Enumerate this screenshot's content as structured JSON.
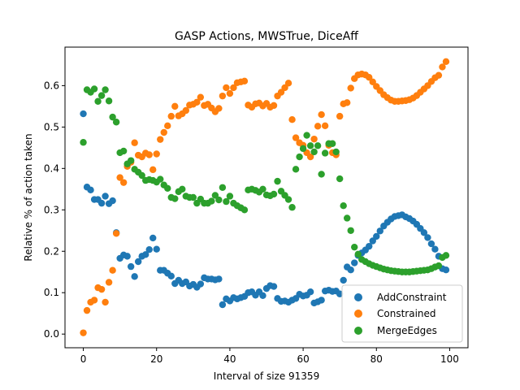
{
  "chart_data": {
    "type": "scatter",
    "title": "GASP Actions, MWSTrue, DiceAff",
    "xlabel": "Interval of size 91359",
    "ylabel": "Relative % of action taken",
    "xlim": [
      -5.0,
      105.0
    ],
    "ylim": [
      -0.033,
      0.693
    ],
    "xticks": [
      0,
      20,
      40,
      60,
      80,
      100
    ],
    "yticks": [
      0.0,
      0.1,
      0.2,
      0.3,
      0.4,
      0.5,
      0.6
    ],
    "xtick_labels": [
      "0",
      "20",
      "40",
      "60",
      "80",
      "100"
    ],
    "ytick_labels": [
      "0.0",
      "0.1",
      "0.2",
      "0.3",
      "0.4",
      "0.5",
      "0.6"
    ],
    "grid": false,
    "legend_position": "lower-right",
    "series": [
      {
        "name": "AddConstraint",
        "color": "#1f77b4",
        "x": [
          0,
          1,
          2,
          3,
          4,
          5,
          6,
          7,
          8,
          9,
          10,
          11,
          12,
          13,
          14,
          15,
          16,
          17,
          18,
          19,
          20,
          21,
          22,
          23,
          24,
          25,
          26,
          27,
          28,
          29,
          30,
          31,
          32,
          33,
          34,
          35,
          36,
          37,
          38,
          39,
          40,
          41,
          42,
          43,
          44,
          45,
          46,
          47,
          48,
          49,
          50,
          51,
          52,
          53,
          54,
          55,
          56,
          57,
          58,
          59,
          60,
          61,
          62,
          63,
          64,
          65,
          66,
          67,
          68,
          69,
          70,
          71,
          72,
          73,
          74,
          75,
          76,
          77,
          78,
          79,
          80,
          81,
          82,
          83,
          84,
          85,
          86,
          87,
          88,
          89,
          90,
          91,
          92,
          93,
          94,
          95,
          96,
          97,
          98,
          99
        ],
        "y": [
          0.532,
          0.355,
          0.348,
          0.325,
          0.325,
          0.316,
          0.333,
          0.315,
          0.322,
          0.245,
          0.183,
          0.191,
          0.188,
          0.163,
          0.139,
          0.175,
          0.188,
          0.192,
          0.204,
          0.232,
          0.205,
          0.154,
          0.154,
          0.147,
          0.14,
          0.122,
          0.13,
          0.122,
          0.126,
          0.116,
          0.12,
          0.113,
          0.121,
          0.136,
          0.133,
          0.133,
          0.131,
          0.133,
          0.071,
          0.085,
          0.08,
          0.088,
          0.085,
          0.088,
          0.091,
          0.1,
          0.102,
          0.094,
          0.102,
          0.093,
          0.11,
          0.117,
          0.115,
          0.086,
          0.079,
          0.08,
          0.077,
          0.082,
          0.086,
          0.096,
          0.092,
          0.094,
          0.102,
          0.075,
          0.078,
          0.082,
          0.104,
          0.106,
          0.103,
          0.104,
          0.097,
          0.13,
          0.162,
          0.155,
          0.172,
          0.19,
          0.196,
          0.203,
          0.212,
          0.225,
          0.236,
          0.249,
          0.261,
          0.27,
          0.278,
          0.284,
          0.286,
          0.288,
          0.283,
          0.279,
          0.273,
          0.265,
          0.255,
          0.245,
          0.233,
          0.218,
          0.205,
          0.188,
          0.158,
          0.155
        ]
      },
      {
        "name": "Constrained",
        "color": "#ff7f0e",
        "x": [
          0,
          1,
          2,
          3,
          4,
          5,
          6,
          7,
          8,
          9,
          10,
          11,
          12,
          13,
          14,
          15,
          16,
          17,
          18,
          19,
          20,
          21,
          22,
          23,
          24,
          25,
          26,
          27,
          28,
          29,
          30,
          31,
          32,
          33,
          34,
          35,
          36,
          37,
          38,
          39,
          40,
          41,
          42,
          43,
          44,
          45,
          46,
          47,
          48,
          49,
          50,
          51,
          52,
          53,
          54,
          55,
          56,
          57,
          58,
          59,
          60,
          61,
          62,
          63,
          64,
          65,
          66,
          67,
          68,
          69,
          70,
          71,
          72,
          73,
          74,
          75,
          76,
          77,
          78,
          79,
          80,
          81,
          82,
          83,
          84,
          85,
          86,
          87,
          88,
          89,
          90,
          91,
          92,
          93,
          94,
          95,
          96,
          97,
          98,
          99
        ],
        "y": [
          0.003,
          0.057,
          0.077,
          0.082,
          0.112,
          0.108,
          0.077,
          0.125,
          0.154,
          0.243,
          0.378,
          0.366,
          0.405,
          0.415,
          0.462,
          0.432,
          0.428,
          0.437,
          0.433,
          0.397,
          0.435,
          0.47,
          0.487,
          0.503,
          0.526,
          0.55,
          0.527,
          0.532,
          0.54,
          0.553,
          0.555,
          0.56,
          0.572,
          0.552,
          0.555,
          0.546,
          0.537,
          0.545,
          0.575,
          0.595,
          0.581,
          0.595,
          0.607,
          0.609,
          0.611,
          0.553,
          0.548,
          0.556,
          0.558,
          0.551,
          0.557,
          0.548,
          0.552,
          0.575,
          0.584,
          0.595,
          0.606,
          0.518,
          0.474,
          0.462,
          0.456,
          0.438,
          0.428,
          0.471,
          0.502,
          0.53,
          0.503,
          0.456,
          0.438,
          0.433,
          0.526,
          0.556,
          0.559,
          0.594,
          0.617,
          0.626,
          0.628,
          0.626,
          0.62,
          0.609,
          0.598,
          0.588,
          0.578,
          0.571,
          0.565,
          0.562,
          0.562,
          0.563,
          0.564,
          0.566,
          0.57,
          0.576,
          0.584,
          0.592,
          0.6,
          0.61,
          0.619,
          0.625,
          0.645,
          0.658
        ]
      },
      {
        "name": "MergeEdges",
        "color": "#2ca02c",
        "x": [
          0,
          1,
          2,
          3,
          4,
          5,
          6,
          7,
          8,
          9,
          10,
          11,
          12,
          13,
          14,
          15,
          16,
          17,
          18,
          19,
          20,
          21,
          22,
          23,
          24,
          25,
          26,
          27,
          28,
          29,
          30,
          31,
          32,
          33,
          34,
          35,
          36,
          37,
          38,
          39,
          40,
          41,
          42,
          43,
          44,
          45,
          46,
          47,
          48,
          49,
          50,
          51,
          52,
          53,
          54,
          55,
          56,
          57,
          58,
          59,
          60,
          61,
          62,
          63,
          64,
          65,
          66,
          67,
          68,
          69,
          70,
          71,
          72,
          73,
          74,
          75,
          76,
          77,
          78,
          79,
          80,
          81,
          82,
          83,
          84,
          85,
          86,
          87,
          88,
          89,
          90,
          91,
          92,
          93,
          94,
          95,
          96,
          97,
          98,
          99
        ],
        "y": [
          0.463,
          0.59,
          0.584,
          0.592,
          0.562,
          0.576,
          0.59,
          0.563,
          0.524,
          0.512,
          0.438,
          0.442,
          0.411,
          0.419,
          0.398,
          0.391,
          0.383,
          0.371,
          0.373,
          0.371,
          0.367,
          0.374,
          0.36,
          0.352,
          0.33,
          0.327,
          0.344,
          0.35,
          0.333,
          0.33,
          0.33,
          0.316,
          0.326,
          0.316,
          0.316,
          0.321,
          0.335,
          0.324,
          0.354,
          0.32,
          0.333,
          0.316,
          0.31,
          0.305,
          0.3,
          0.348,
          0.35,
          0.347,
          0.343,
          0.35,
          0.336,
          0.334,
          0.338,
          0.369,
          0.345,
          0.335,
          0.325,
          0.306,
          0.398,
          0.428,
          0.448,
          0.48,
          0.455,
          0.44,
          0.455,
          0.386,
          0.437,
          0.46,
          0.46,
          0.44,
          0.375,
          0.31,
          0.28,
          0.25,
          0.21,
          0.193,
          0.18,
          0.175,
          0.17,
          0.166,
          0.163,
          0.16,
          0.157,
          0.155,
          0.153,
          0.152,
          0.151,
          0.15,
          0.15,
          0.15,
          0.151,
          0.152,
          0.153,
          0.154,
          0.155,
          0.158,
          0.162,
          0.165,
          0.185,
          0.19
        ]
      }
    ]
  }
}
